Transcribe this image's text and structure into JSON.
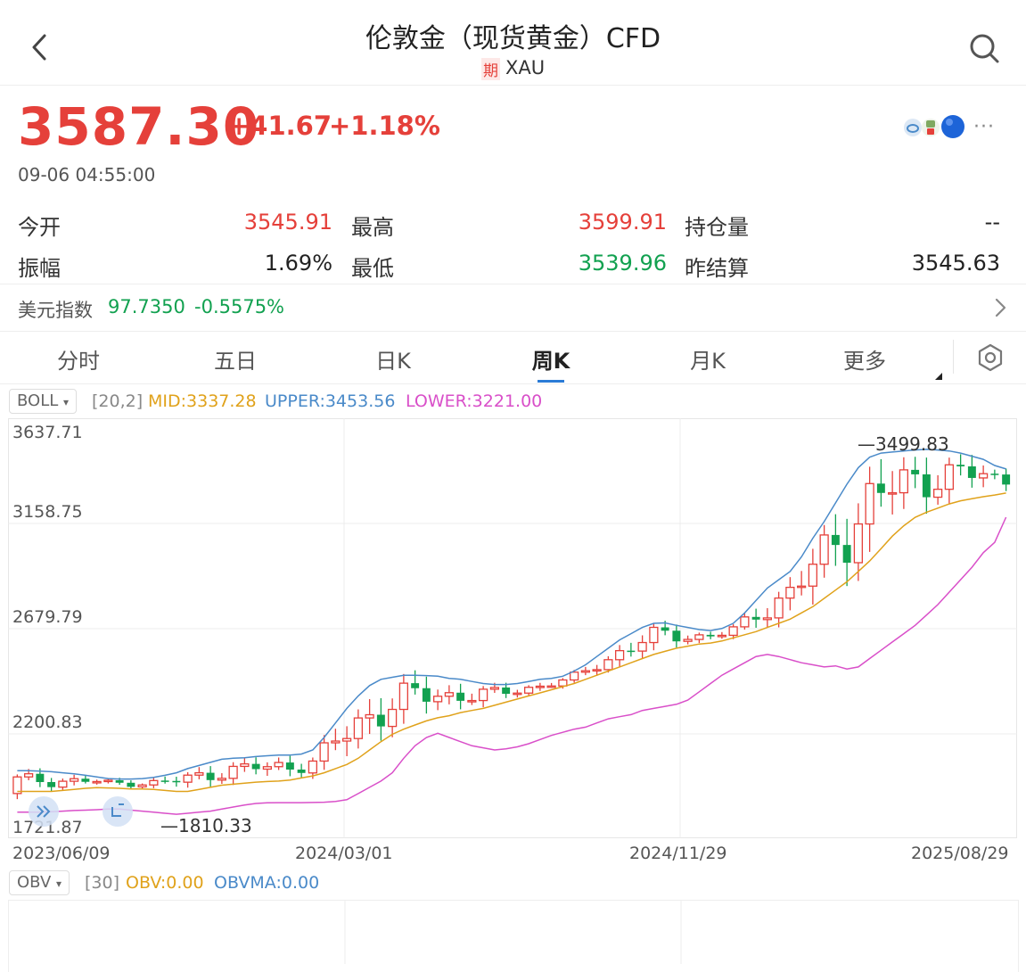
{
  "header": {
    "title": "伦敦金（现货黄金）CFD",
    "badge": "期",
    "symbol": "XAU",
    "back_icon": "chevron-left-icon",
    "search_icon": "search-icon"
  },
  "quote": {
    "price": "3587.30",
    "change": "+41.67",
    "change_pct": "+1.18%",
    "time": "09-06 04:55:00",
    "more": "···"
  },
  "stats": [
    {
      "label": "今开",
      "value": "3545.91",
      "color": "#e5403a"
    },
    {
      "label": "最高",
      "value": "3599.91",
      "color": "#e5403a"
    },
    {
      "label": "持仓量",
      "value": "--",
      "color": "#222222"
    },
    {
      "label": "振幅",
      "value": "1.69%",
      "color": "#222222"
    },
    {
      "label": "最低",
      "value": "3539.96",
      "color": "#12a150"
    },
    {
      "label": "昨结算",
      "value": "3545.63",
      "color": "#222222"
    }
  ],
  "dxy": {
    "label": "美元指数",
    "value": "97.7350",
    "change": "-0.5575%"
  },
  "tabs": [
    {
      "label": "分时"
    },
    {
      "label": "五日"
    },
    {
      "label": "日K"
    },
    {
      "label": "周K",
      "active": true
    },
    {
      "label": "月K"
    },
    {
      "label": "更多"
    }
  ],
  "boll": {
    "name": "BOLL",
    "params": "[20,2]",
    "mid": "MID:3337.28",
    "upper": "UPPER:3453.56",
    "lower": "LOWER:3221.00",
    "mid_color": "#e0a21b",
    "upper_color": "#4a8ac9",
    "lower_color": "#d94fc9"
  },
  "obv": {
    "name": "OBV",
    "params": "[30]",
    "obv": "OBV:0.00",
    "obvma": "OBVMA:0.00"
  },
  "chart_data": {
    "type": "candlestick",
    "interval": "weekly",
    "y_ticks": [
      "3637.71",
      "3158.75",
      "2679.79",
      "2200.83",
      "1721.87"
    ],
    "ylim": [
      1721.87,
      3637.71
    ],
    "x_labels": [
      "2023/06/09",
      "2024/03/01",
      "2024/11/29",
      "2025/08/29"
    ],
    "annotations": [
      {
        "text": "3499.83",
        "value": 3499.83,
        "kind": "high"
      },
      {
        "text": "1810.33",
        "value": 1810.33,
        "kind": "low"
      }
    ],
    "colors": {
      "up": "#e5403a",
      "down": "#12a150"
    },
    "mid": [
      1900,
      1900,
      1900,
      1900,
      1905,
      1910,
      1915,
      1918,
      1917,
      1915,
      1912,
      1912,
      1910,
      1905,
      1900,
      1900,
      1910,
      1920,
      1930,
      1935,
      1940,
      1945,
      1948,
      1950,
      1955,
      1965,
      1975,
      1990,
      2010,
      2030,
      2060,
      2100,
      2140,
      2175,
      2200,
      2220,
      2240,
      2255,
      2265,
      2280,
      2290,
      2300,
      2315,
      2330,
      2345,
      2360,
      2375,
      2390,
      2405,
      2420,
      2440,
      2460,
      2480,
      2500,
      2520,
      2540,
      2560,
      2575,
      2590,
      2600,
      2610,
      2615,
      2625,
      2640,
      2655,
      2670,
      2690,
      2710,
      2730,
      2760,
      2790,
      2830,
      2870,
      2910,
      2960,
      3010,
      3070,
      3130,
      3180,
      3220,
      3245,
      3265,
      3285,
      3300,
      3310,
      3320,
      3328,
      3337.28
    ],
    "upper": [
      2000,
      2000,
      1998,
      1995,
      1990,
      1985,
      1978,
      1970,
      1962,
      1960,
      1960,
      1962,
      1968,
      1978,
      1990,
      2010,
      2025,
      2040,
      2055,
      2060,
      2062,
      2068,
      2072,
      2075,
      2075,
      2080,
      2100,
      2160,
      2230,
      2300,
      2360,
      2410,
      2440,
      2450,
      2460,
      2460,
      2458,
      2455,
      2445,
      2440,
      2430,
      2420,
      2415,
      2415,
      2420,
      2430,
      2440,
      2445,
      2455,
      2480,
      2510,
      2550,
      2590,
      2630,
      2660,
      2690,
      2710,
      2712,
      2700,
      2690,
      2680,
      2675,
      2685,
      2710,
      2760,
      2820,
      2880,
      2920,
      2960,
      3030,
      3120,
      3200,
      3290,
      3380,
      3460,
      3510,
      3530,
      3535,
      3540,
      3545,
      3548,
      3545,
      3540,
      3530,
      3515,
      3500,
      3470,
      3453.56
    ],
    "lower": [
      1800,
      1800,
      1800,
      1802,
      1805,
      1808,
      1810,
      1812,
      1815,
      1815,
      1810,
      1805,
      1800,
      1795,
      1790,
      1795,
      1800,
      1805,
      1815,
      1825,
      1835,
      1842,
      1845,
      1846,
      1846,
      1846,
      1847,
      1848,
      1852,
      1860,
      1890,
      1920,
      1950,
      1990,
      2060,
      2120,
      2160,
      2180,
      2160,
      2140,
      2120,
      2110,
      2100,
      2105,
      2115,
      2130,
      2150,
      2170,
      2185,
      2200,
      2210,
      2230,
      2250,
      2260,
      2270,
      2290,
      2300,
      2310,
      2320,
      2340,
      2380,
      2420,
      2460,
      2490,
      2520,
      2550,
      2560,
      2550,
      2535,
      2520,
      2510,
      2500,
      2505,
      2490,
      2500,
      2540,
      2580,
      2620,
      2660,
      2700,
      2750,
      2800,
      2860,
      2920,
      2980,
      3050,
      3100,
      3221.0
    ]
  }
}
